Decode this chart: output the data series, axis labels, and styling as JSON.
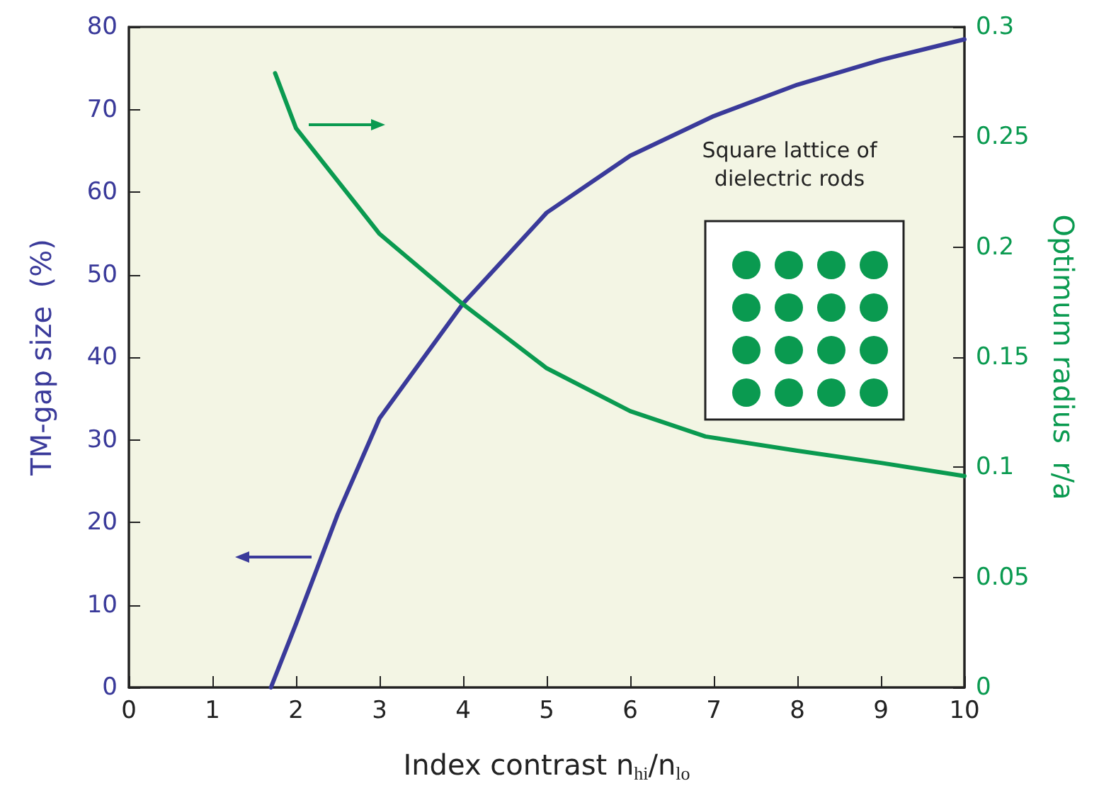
{
  "chart_data": {
    "type": "line",
    "xlabel": "Index contrast n$_{hi}$/n$_{lo}$",
    "ylabel": "TM-gap size  (%)",
    "y2label": "Optimum radius  r/a",
    "xlim": [
      0,
      10
    ],
    "xticks": [
      0,
      1,
      2,
      3,
      4,
      5,
      6,
      7,
      8,
      9,
      10
    ],
    "ylim": [
      0,
      80
    ],
    "yticks": [
      0,
      10,
      20,
      30,
      40,
      50,
      60,
      70,
      80
    ],
    "y2lim": [
      0,
      0.3
    ],
    "y2ticks": [
      0,
      0.05,
      0.1,
      0.15,
      0.2,
      0.25,
      0.3
    ],
    "grid": false,
    "marker": "none",
    "line_style": "solid",
    "annotations": [
      "Square lattice of dielectric rods"
    ],
    "series": [
      {
        "color": "#3a3a9a",
        "x": [
          1.7,
          2,
          2.5,
          3,
          4,
          5,
          6,
          7,
          8,
          9,
          10
        ],
        "values": [
          0,
          7.7,
          21,
          32.6,
          46.5,
          57.5,
          64.4,
          69.2,
          73,
          76,
          78.5
        ]
      },
      {
        "color": "#0a9a50",
        "axis": "y2",
        "x": [
          1.75,
          2,
          3,
          4,
          5,
          6,
          6.9,
          8,
          9,
          10
        ],
        "values": [
          0.279,
          0.254,
          0.206,
          0.174,
          0.145,
          0.1255,
          0.114,
          0.1075,
          0.102,
          0.096
        ]
      }
    ]
  }
}
